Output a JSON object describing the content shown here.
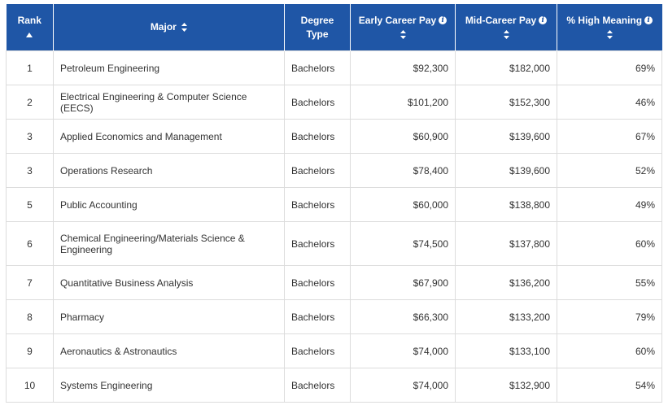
{
  "table": {
    "headers": {
      "rank": "Rank",
      "major": "Major",
      "degree_line1": "Degree",
      "degree_line2": "Type",
      "early": "Early Career Pay",
      "mid": "Mid-Career Pay",
      "meaning": "% High Meaning"
    },
    "rows": [
      {
        "rank": "1",
        "major": "Petroleum Engineering",
        "degree": "Bachelors",
        "early": "$92,300",
        "mid": "$182,000",
        "meaning": "69%"
      },
      {
        "rank": "2",
        "major": "Electrical Engineering & Computer Science (EECS)",
        "degree": "Bachelors",
        "early": "$101,200",
        "mid": "$152,300",
        "meaning": "46%"
      },
      {
        "rank": "3",
        "major": "Applied Economics and Management",
        "degree": "Bachelors",
        "early": "$60,900",
        "mid": "$139,600",
        "meaning": "67%"
      },
      {
        "rank": "3",
        "major": "Operations Research",
        "degree": "Bachelors",
        "early": "$78,400",
        "mid": "$139,600",
        "meaning": "52%"
      },
      {
        "rank": "5",
        "major": "Public Accounting",
        "degree": "Bachelors",
        "early": "$60,000",
        "mid": "$138,800",
        "meaning": "49%"
      },
      {
        "rank": "6",
        "major": "Chemical Engineering/Materials Science & Engineering",
        "degree": "Bachelors",
        "early": "$74,500",
        "mid": "$137,800",
        "meaning": "60%"
      },
      {
        "rank": "7",
        "major": "Quantitative Business Analysis",
        "degree": "Bachelors",
        "early": "$67,900",
        "mid": "$136,200",
        "meaning": "55%"
      },
      {
        "rank": "8",
        "major": "Pharmacy",
        "degree": "Bachelors",
        "early": "$66,300",
        "mid": "$133,200",
        "meaning": "79%"
      },
      {
        "rank": "9",
        "major": "Aeronautics & Astronautics",
        "degree": "Bachelors",
        "early": "$74,000",
        "mid": "$133,100",
        "meaning": "60%"
      },
      {
        "rank": "10",
        "major": "Systems Engineering",
        "degree": "Bachelors",
        "early": "$74,000",
        "mid": "$132,900",
        "meaning": "54%"
      }
    ]
  },
  "colors": {
    "header_bg": "#1f56a6",
    "header_text": "#ffffff",
    "border": "#dcdcdc",
    "text": "#333333"
  },
  "icons": {
    "sort_active": "sort-asc-icon",
    "sort": "sort-icon",
    "info": "info-icon"
  }
}
